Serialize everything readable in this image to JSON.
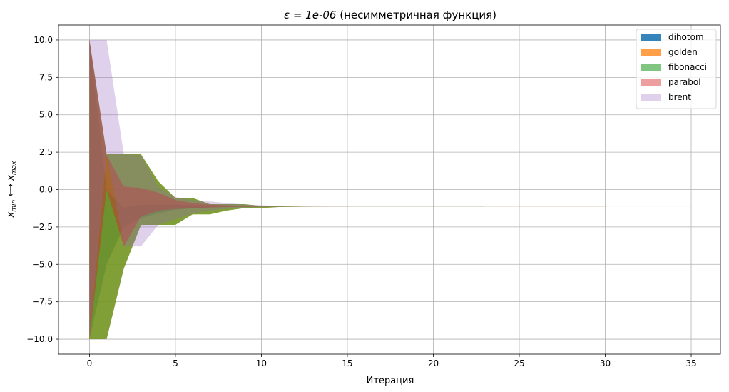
{
  "chart_data": {
    "type": "area",
    "title": "ε = 1e-06 (несимметричная функция)",
    "title_prefix": "ε = 1e-06",
    "title_suffix": " (несимметричная функция)",
    "xlabel": "Итерация",
    "ylabel": "x_min ⟷ x_max",
    "ylabel_main_left": "x",
    "ylabel_sub_left": "min",
    "ylabel_arrow": " ⟷ ",
    "ylabel_main_right": "x",
    "ylabel_sub_right": "max",
    "xlim": [
      -1.8,
      36.7
    ],
    "ylim": [
      -11.0,
      11.0
    ],
    "xticks": [
      0,
      5,
      10,
      15,
      20,
      25,
      30,
      35
    ],
    "xtick_labels": [
      "0",
      "5",
      "10",
      "15",
      "20",
      "25",
      "30",
      "35"
    ],
    "yticks": [
      10.0,
      7.5,
      5.0,
      2.5,
      0.0,
      -2.5,
      -5.0,
      -7.5,
      -10.0
    ],
    "ytick_labels": [
      "10.0",
      "7.5",
      "5.0",
      "2.5",
      "0.0",
      "−2.5",
      "−5.0",
      "−7.5",
      "−10.0"
    ],
    "grid": true,
    "legend_position": "top-right",
    "series": [
      {
        "name": "dihotom",
        "color": "#1f77b4",
        "opacity": 0.9,
        "x": [
          0,
          1,
          2,
          3,
          4,
          5,
          6,
          7,
          8,
          9,
          10,
          11,
          12,
          13,
          14,
          15,
          16,
          17,
          18,
          19,
          20,
          21,
          22,
          23
        ],
        "upper": [
          10.0,
          0.0,
          -1.2,
          -1.0,
          -1.0,
          -1.0,
          -1.05,
          -1.05,
          -1.1,
          -1.1,
          -1.12,
          -1.12,
          -1.13,
          -1.13,
          -1.13,
          -1.13,
          -1.13,
          -1.13,
          -1.13,
          -1.13,
          -1.13,
          -1.13,
          -1.13,
          -1.13
        ],
        "lower": [
          -10.0,
          -5.0,
          -2.5,
          -1.9,
          -1.6,
          -1.35,
          -1.25,
          -1.2,
          -1.16,
          -1.15,
          -1.14,
          -1.135,
          -1.133,
          -1.132,
          -1.131,
          -1.131,
          -1.131,
          -1.131,
          -1.131,
          -1.131,
          -1.131,
          -1.131,
          -1.131,
          -1.131
        ]
      },
      {
        "name": "golden",
        "color": "#ff7f0e",
        "opacity": 0.75,
        "x": [
          0,
          1,
          2,
          3,
          4,
          5,
          6,
          7,
          8,
          9,
          10,
          11,
          12,
          13,
          14,
          15,
          16,
          17,
          18,
          19,
          20,
          21,
          22,
          23,
          24,
          25,
          26,
          27,
          28,
          29,
          30
        ],
        "upper": [
          10.0,
          2.36,
          2.36,
          2.36,
          0.56,
          -0.56,
          -0.56,
          -0.98,
          -0.98,
          -0.98,
          -1.1,
          -1.1,
          -1.12,
          -1.125,
          -1.13,
          -1.13,
          -1.13,
          -1.13,
          -1.13,
          -1.13,
          -1.13,
          -1.13,
          -1.13,
          -1.13,
          -1.13,
          -1.13,
          -1.13,
          -1.13,
          -1.13,
          -1.13,
          -1.13
        ],
        "lower": [
          -10.0,
          -10.0,
          -5.28,
          -2.36,
          -2.36,
          -2.36,
          -1.66,
          -1.66,
          -1.4,
          -1.24,
          -1.24,
          -1.17,
          -1.15,
          -1.14,
          -1.135,
          -1.133,
          -1.132,
          -1.131,
          -1.131,
          -1.131,
          -1.131,
          -1.131,
          -1.131,
          -1.131,
          -1.131,
          -1.131,
          -1.131,
          -1.131,
          -1.131,
          -1.131,
          -1.131
        ]
      },
      {
        "name": "fibonacci",
        "color": "#2ca02c",
        "opacity": 0.6,
        "x": [
          0,
          1,
          2,
          3,
          4,
          5,
          6,
          7,
          8,
          9,
          10,
          11,
          12,
          13,
          14,
          15,
          16,
          17,
          18,
          19,
          20,
          21,
          22,
          23,
          24,
          25,
          26,
          27,
          28,
          29,
          30
        ],
        "upper": [
          10.0,
          2.36,
          2.36,
          2.36,
          0.56,
          -0.56,
          -0.56,
          -0.98,
          -0.98,
          -0.98,
          -1.1,
          -1.1,
          -1.12,
          -1.125,
          -1.13,
          -1.13,
          -1.13,
          -1.13,
          -1.13,
          -1.13,
          -1.13,
          -1.13,
          -1.13,
          -1.13,
          -1.13,
          -1.13,
          -1.13,
          -1.13,
          -1.13,
          -1.13,
          -1.13
        ],
        "lower": [
          -10.0,
          -10.0,
          -5.28,
          -2.36,
          -2.36,
          -2.36,
          -1.66,
          -1.66,
          -1.4,
          -1.24,
          -1.24,
          -1.17,
          -1.15,
          -1.14,
          -1.135,
          -1.133,
          -1.132,
          -1.131,
          -1.131,
          -1.131,
          -1.131,
          -1.131,
          -1.131,
          -1.131,
          -1.131,
          -1.131,
          -1.131,
          -1.131,
          -1.131,
          -1.131,
          -1.131
        ]
      },
      {
        "name": "parabol",
        "color": "#d62728",
        "opacity": 0.45,
        "x": [
          0,
          1,
          2,
          3,
          4,
          5,
          6,
          7,
          8,
          9,
          10,
          11,
          12,
          13,
          14,
          15
        ],
        "upper": [
          10.0,
          2.3,
          0.2,
          0.1,
          -0.2,
          -0.7,
          -0.9,
          -1.0,
          -1.05,
          -1.1,
          -1.12,
          -1.13,
          -1.13,
          -1.13,
          -1.13,
          -1.13
        ],
        "lower": [
          -10.0,
          0.0,
          -3.8,
          -1.8,
          -1.4,
          -1.3,
          -1.25,
          -1.2,
          -1.17,
          -1.15,
          -1.14,
          -1.135,
          -1.132,
          -1.131,
          -1.131,
          -1.131
        ]
      },
      {
        "name": "brent",
        "color": "#9467bd",
        "opacity": 0.3,
        "x": [
          0,
          1,
          2,
          3,
          4,
          5,
          6,
          7,
          8,
          9,
          10,
          11,
          12,
          13,
          14,
          15,
          16,
          17,
          18,
          19,
          20,
          21,
          22,
          23,
          24,
          25,
          26,
          27,
          28,
          29,
          30,
          31,
          32,
          33,
          34,
          35
        ],
        "upper": [
          10.0,
          10.0,
          2.36,
          2.3,
          0.2,
          -0.5,
          -0.7,
          -0.8,
          -0.9,
          -1.0,
          -1.05,
          -1.1,
          -1.12,
          -1.125,
          -1.13,
          -1.13,
          -1.13,
          -1.13,
          -1.13,
          -1.13,
          -1.13,
          -1.13,
          -1.13,
          -1.13,
          -1.13,
          -1.13,
          -1.13,
          -1.13,
          -1.13,
          -1.13,
          -1.13,
          -1.13,
          -1.13,
          -1.13,
          -1.13,
          -1.13
        ],
        "lower": [
          -10.0,
          2.36,
          -3.8,
          -3.8,
          -2.36,
          -2.0,
          -1.6,
          -1.4,
          -1.3,
          -1.2,
          -1.17,
          -1.15,
          -1.14,
          -1.135,
          -1.133,
          -1.132,
          -1.131,
          -1.131,
          -1.131,
          -1.131,
          -1.131,
          -1.131,
          -1.131,
          -1.131,
          -1.131,
          -1.131,
          -1.131,
          -1.131,
          -1.131,
          -1.131,
          -1.131,
          -1.131,
          -1.131,
          -1.131,
          -1.131,
          -1.131
        ]
      }
    ]
  }
}
